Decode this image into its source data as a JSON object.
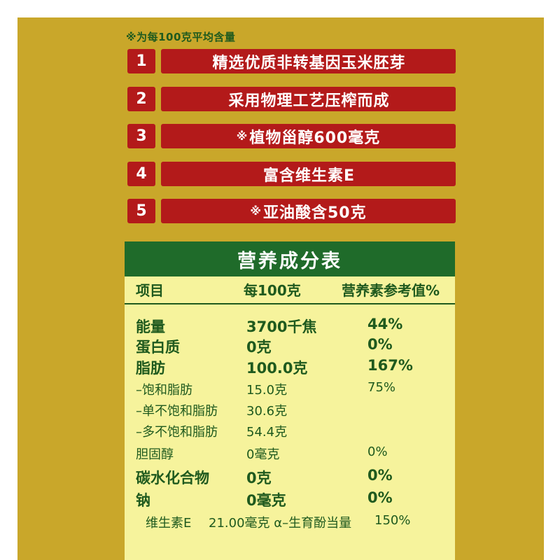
{
  "note": "※为每100克平均含量",
  "features": [
    {
      "num": "1",
      "mark": "",
      "text": "精选优质非转基因玉米胚芽"
    },
    {
      "num": "2",
      "mark": "",
      "text": "采用物理工艺压榨而成"
    },
    {
      "num": "3",
      "mark": "※",
      "text": "植物甾醇600毫克"
    },
    {
      "num": "4",
      "mark": "",
      "text": "富含维生素E"
    },
    {
      "num": "5",
      "mark": "※",
      "text": "亚油酸含50克"
    }
  ],
  "nutrition": {
    "title": "营养成分表",
    "headers": {
      "item": "项目",
      "per100": "每100克",
      "nrv": "营养素参考值%"
    },
    "rows": [
      {
        "item": "能量",
        "per100": "3700千焦",
        "nrv": "44%"
      },
      {
        "item": "蛋白质",
        "per100": "0克",
        "nrv": "0%"
      },
      {
        "item": "脂肪",
        "per100": "100.0克",
        "nrv": "167%"
      },
      {
        "item": "–饱和脂肪",
        "per100": "15.0克",
        "nrv": "75%"
      },
      {
        "item": "–单不饱和脂肪",
        "per100": "30.6克",
        "nrv": ""
      },
      {
        "item": "–多不饱和脂肪",
        "per100": "54.4克",
        "nrv": ""
      },
      {
        "item": "胆固醇",
        "per100": "0毫克",
        "nrv": "0%"
      },
      {
        "item": "碳水化合物",
        "per100": "0克",
        "nrv": "0%"
      },
      {
        "item": "钠",
        "per100": "0毫克",
        "nrv": "0%"
      },
      {
        "item": "维生素E",
        "per100": "21.00毫克 α–生育酚当量",
        "nrv": "150%"
      }
    ]
  },
  "colors": {
    "background": "#c9a72a",
    "feature_red": "#b31a1a",
    "table_green": "#1f6b2a",
    "table_bg": "#f6f39c",
    "text_green": "#1f5a1e"
  }
}
